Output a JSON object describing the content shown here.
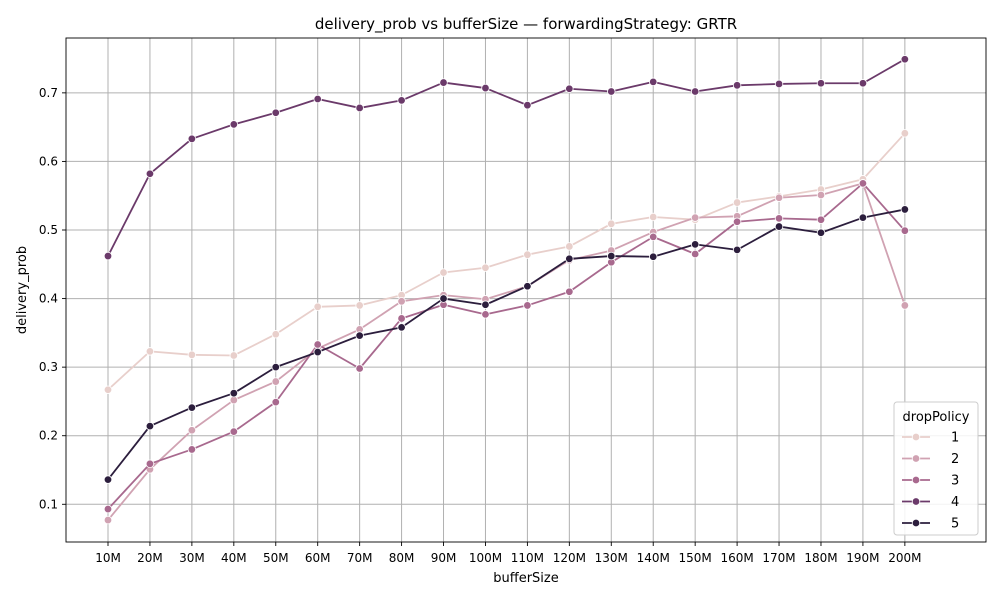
{
  "chart_data": {
    "type": "line",
    "title": "delivery_prob vs bufferSize — forwardingStrategy: GRTR",
    "xlabel": "bufferSize",
    "ylabel": "delivery_prob",
    "categories": [
      "10M",
      "20M",
      "30M",
      "40M",
      "50M",
      "60M",
      "70M",
      "80M",
      "90M",
      "100M",
      "110M",
      "120M",
      "130M",
      "140M",
      "150M",
      "160M",
      "170M",
      "180M",
      "190M",
      "200M"
    ],
    "ylim": [
      0.045,
      0.78
    ],
    "yticks": [
      0.1,
      0.2,
      0.3,
      0.4,
      0.5,
      0.6,
      0.7
    ],
    "ytick_labels": [
      "0.1",
      "0.2",
      "0.3",
      "0.4",
      "0.5",
      "0.6",
      "0.7"
    ],
    "grid": true,
    "legend": {
      "title": "dropPolicy",
      "placement": "bottom-right"
    },
    "series": [
      {
        "name": "1",
        "color": "#e8cfcb",
        "values": [
          0.267,
          0.323,
          0.318,
          0.317,
          0.348,
          0.388,
          0.39,
          0.405,
          0.438,
          0.445,
          0.464,
          0.476,
          0.509,
          0.519,
          0.515,
          0.54,
          0.549,
          0.559,
          0.574,
          0.641
        ]
      },
      {
        "name": "2",
        "color": "#d0a2b2",
        "values": [
          0.077,
          0.151,
          0.208,
          0.252,
          0.279,
          0.327,
          0.355,
          0.396,
          0.405,
          0.399,
          0.418,
          0.456,
          0.47,
          0.497,
          0.518,
          0.52,
          0.547,
          0.551,
          0.568,
          0.39
        ]
      },
      {
        "name": "3",
        "color": "#a8698e",
        "values": [
          0.093,
          0.159,
          0.18,
          0.206,
          0.249,
          0.333,
          0.298,
          0.371,
          0.391,
          0.377,
          0.39,
          0.41,
          0.453,
          0.49,
          0.465,
          0.512,
          0.517,
          0.515,
          0.568,
          0.499
        ]
      },
      {
        "name": "4",
        "color": "#6b3a6a",
        "values": [
          0.462,
          0.582,
          0.633,
          0.654,
          0.671,
          0.691,
          0.678,
          0.689,
          0.715,
          0.707,
          0.682,
          0.706,
          0.702,
          0.716,
          0.702,
          0.711,
          0.713,
          0.714,
          0.714,
          0.749
        ]
      },
      {
        "name": "5",
        "color": "#2c1e3d",
        "values": [
          0.136,
          0.214,
          0.241,
          0.262,
          0.3,
          0.322,
          0.346,
          0.358,
          0.4,
          0.391,
          0.418,
          0.458,
          0.462,
          0.461,
          0.479,
          0.471,
          0.505,
          0.496,
          0.518,
          0.53
        ]
      }
    ]
  }
}
